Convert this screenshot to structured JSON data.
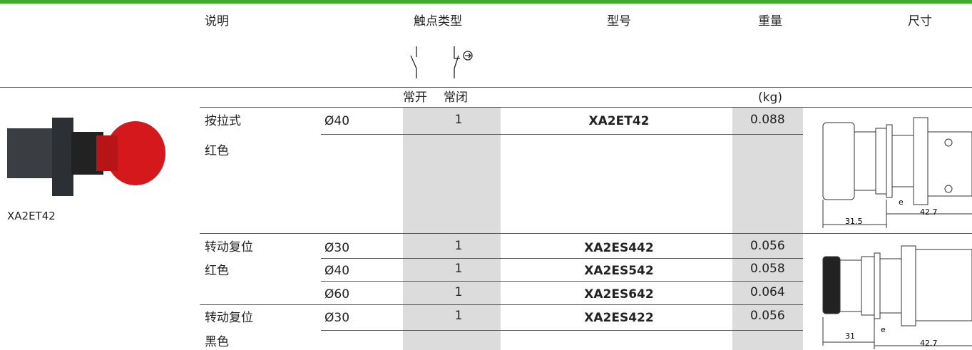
{
  "header": {
    "columns": [
      "说明",
      "触点类型",
      "型号",
      "重量",
      "尺寸"
    ]
  },
  "subheader": {
    "normally_open": "常开",
    "normally_closed": "常闭",
    "weight_unit": "(kg)"
  },
  "product": {
    "label": "XA2ET42"
  },
  "groups": [
    {
      "description": [
        "按拉式",
        "红色"
      ],
      "rows": [
        {
          "diameter": "Ø40",
          "contact": "1",
          "model": "XA2ET42",
          "weight": "0.088"
        }
      ]
    },
    {
      "description": [
        "转动复位",
        "红色"
      ],
      "rows": [
        {
          "diameter": "Ø30",
          "contact": "1",
          "model": "XA2ES442",
          "weight": "0.056"
        },
        {
          "diameter": "Ø40",
          "contact": "1",
          "model": "XA2ES542",
          "weight": "0.058"
        },
        {
          "diameter": "Ø60",
          "contact": "1",
          "model": "XA2ES642",
          "weight": "0.064"
        }
      ]
    },
    {
      "description": [
        "转动复位",
        "黑色"
      ],
      "rows": [
        {
          "diameter": "Ø30",
          "contact": "1",
          "model": "XA2ES422",
          "weight": "0.056"
        }
      ]
    }
  ],
  "drawings": [
    {
      "length": "31.5",
      "gap": "e",
      "depth": "42.7"
    },
    {
      "length": "31",
      "gap": "e",
      "depth": "42.7"
    }
  ]
}
